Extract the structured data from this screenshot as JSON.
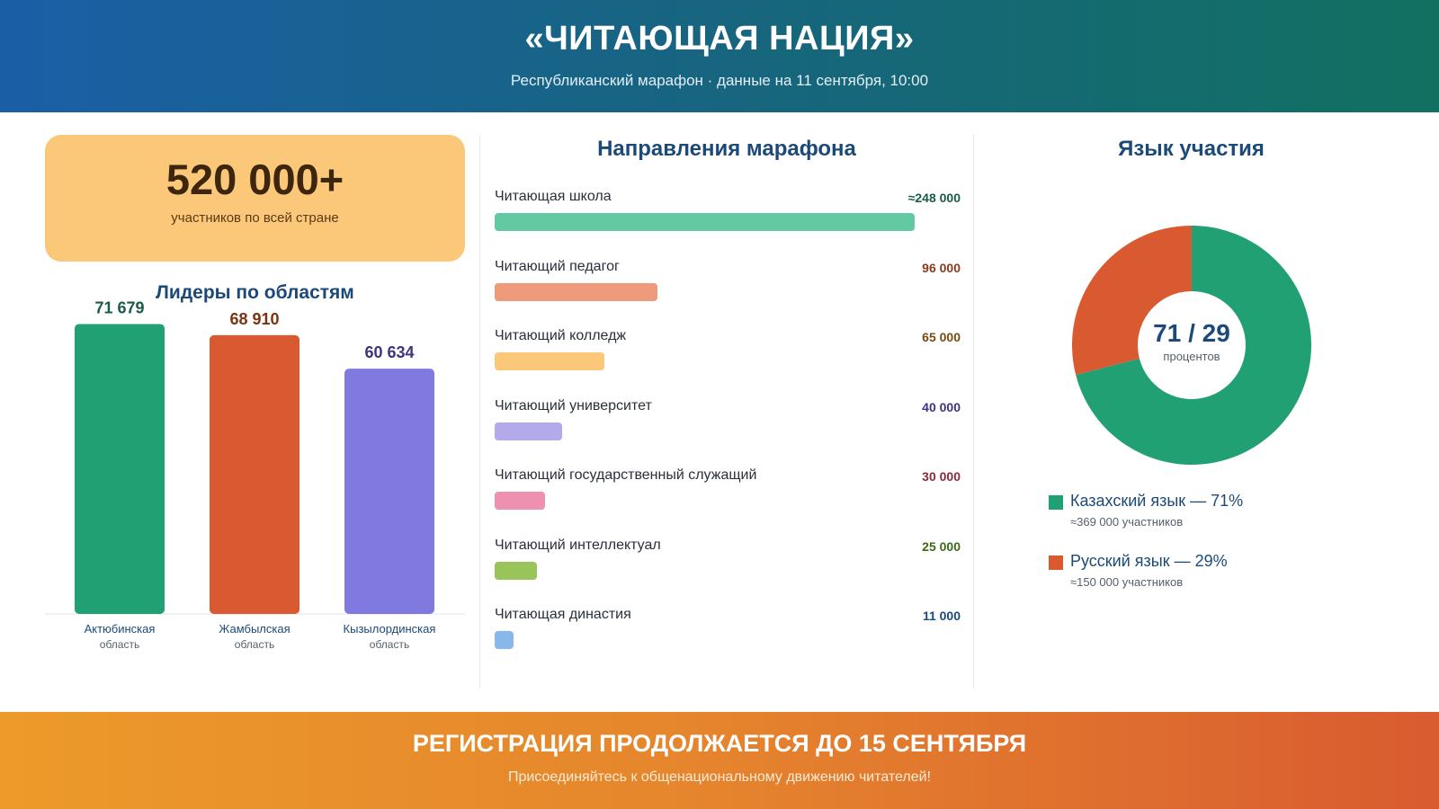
{
  "header": {
    "title": "«ЧИТАЮЩАЯ НАЦИЯ»",
    "subtitle": "Республиканский марафон · данные на 11 сентября, 10:00"
  },
  "stat": {
    "value": "520 000+",
    "label": "участников по всей стране"
  },
  "footer": {
    "headline": "РЕГИСТРАЦИЯ ПРОДОЛЖАЕТСЯ ДО 15 СЕНТЯБРЯ",
    "tagline": "Присоединяйтесь к общенациональному движению читателей!"
  },
  "chart_data": [
    {
      "type": "bar",
      "title": "Лидеры по областям",
      "categories": [
        {
          "line1": "Актюбинская",
          "line2": "область"
        },
        {
          "line1": "Жамбылская",
          "line2": "область"
        },
        {
          "line1": "Кызылординская",
          "line2": "область"
        }
      ],
      "values": [
        71679,
        68910,
        60634
      ],
      "value_labels": [
        "71 679",
        "68 910",
        "60 634"
      ],
      "colors": [
        "#21a073",
        "#d95a31",
        "#8079df"
      ],
      "label_colors": [
        "#1a5a48",
        "#7a3212",
        "#3b3580"
      ],
      "ylim": [
        0,
        72000
      ]
    },
    {
      "type": "bar",
      "orientation": "horizontal",
      "title": "Направления марафона",
      "categories": [
        "Читающая школа",
        "Читающий педагог",
        "Читающий колледж",
        "Читающий университет",
        "Читающий государственный служащий",
        "Читающий интеллектуал",
        "Читающая династия"
      ],
      "values": [
        248000,
        96000,
        65000,
        40000,
        30000,
        25000,
        11000
      ],
      "value_labels": [
        "≈248 000",
        "96 000",
        "65 000",
        "40 000",
        "30 000",
        "25 000",
        "11 000"
      ],
      "colors": [
        "#62c9a2",
        "#f09a7c",
        "#fac878",
        "#b2aaea",
        "#ee90b0",
        "#99c45a",
        "#88b7ea"
      ],
      "label_colors": [
        "#1a5a48",
        "#8a3a1e",
        "#7a4a12",
        "#3b3580",
        "#8a2a3a",
        "#3c6a1a",
        "#1c4a78"
      ],
      "xlim": [
        0,
        248000
      ]
    },
    {
      "type": "pie",
      "title": "Язык участия",
      "center_value": "71 / 29",
      "center_label": "процентов",
      "series": [
        {
          "name": "Казахский язык — 71%",
          "value": 71,
          "note": "≈369 000 участников",
          "color": "#21a073"
        },
        {
          "name": "Русский язык — 29%",
          "value": 29,
          "note": "≈150 000 участников",
          "color": "#d95a31"
        }
      ]
    }
  ]
}
